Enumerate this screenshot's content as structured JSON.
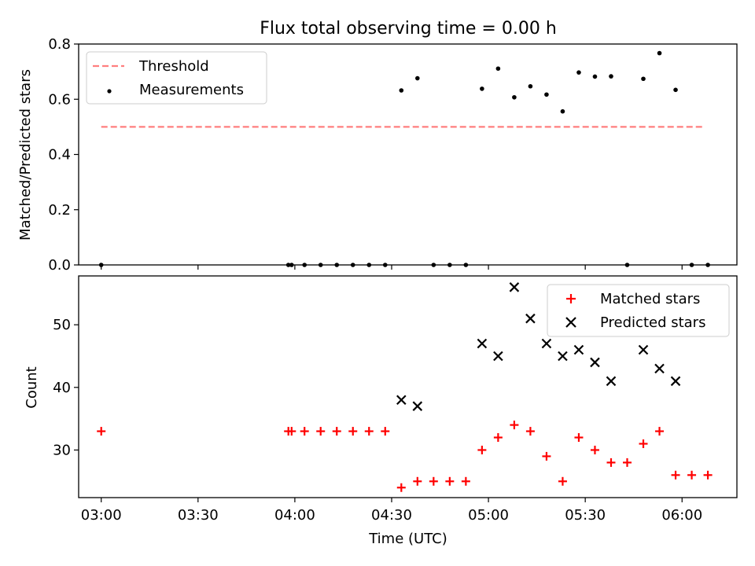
{
  "chart_data": [
    {
      "type": "scatter",
      "title": "Flux total observing time = 0.00 h",
      "xlabel": "",
      "ylabel": "Matched/Predicted stars",
      "ylim": [
        0,
        0.8
      ],
      "xlim": [
        "02:53",
        "06:17"
      ],
      "x_ticks": [
        "03:00",
        "03:30",
        "04:00",
        "04:30",
        "05:00",
        "05:30",
        "06:00"
      ],
      "y_ticks": [
        "0.0",
        "0.2",
        "0.4",
        "0.6",
        "0.8"
      ],
      "show_x_tick_labels": false,
      "legend": {
        "placement": "upper left",
        "entries": [
          "Threshold",
          "Measurements"
        ]
      },
      "threshold": {
        "name": "Threshold",
        "value": 0.5,
        "x_start": "03:00",
        "x_end": "06:07",
        "color": "#ff7f7f",
        "style": "dashed"
      },
      "series": [
        {
          "name": "Measurements",
          "color": "#000000",
          "marker": "dot",
          "points": [
            [
              "03:00",
              0.0
            ],
            [
              "03:58",
              0.0
            ],
            [
              "03:59",
              0.0
            ],
            [
              "04:03",
              0.0
            ],
            [
              "04:08",
              0.0
            ],
            [
              "04:13",
              0.0
            ],
            [
              "04:18",
              0.0
            ],
            [
              "04:23",
              0.0
            ],
            [
              "04:28",
              0.0
            ],
            [
              "04:33",
              0.632
            ],
            [
              "04:38",
              0.676
            ],
            [
              "04:43",
              0.0
            ],
            [
              "04:48",
              0.0
            ],
            [
              "04:53",
              0.0
            ],
            [
              "04:58",
              0.638
            ],
            [
              "05:03",
              0.711
            ],
            [
              "05:08",
              0.607
            ],
            [
              "05:13",
              0.647
            ],
            [
              "05:18",
              0.617
            ],
            [
              "05:23",
              0.556
            ],
            [
              "05:28",
              0.697
            ],
            [
              "05:33",
              0.682
            ],
            [
              "05:38",
              0.683
            ],
            [
              "05:43",
              0.0
            ],
            [
              "05:48",
              0.674
            ],
            [
              "05:53",
              0.767
            ],
            [
              "05:58",
              0.634
            ],
            [
              "06:03",
              0.0
            ],
            [
              "06:08",
              0.0
            ]
          ]
        }
      ]
    },
    {
      "type": "scatter",
      "title": "",
      "xlabel": "Time (UTC)",
      "ylabel": "Count",
      "ylim": [
        22.4,
        57.8
      ],
      "xlim": [
        "02:53",
        "06:17"
      ],
      "x_ticks": [
        "03:00",
        "03:30",
        "04:00",
        "04:30",
        "05:00",
        "05:30",
        "06:00"
      ],
      "y_ticks": [
        "30",
        "40",
        "50"
      ],
      "show_x_tick_labels": true,
      "legend": {
        "placement": "upper right",
        "entries": [
          "Matched stars",
          "Predicted stars"
        ]
      },
      "series": [
        {
          "name": "Matched stars",
          "color": "#ff0000",
          "marker": "plus",
          "points": [
            [
              "03:00",
              33
            ],
            [
              "03:58",
              33
            ],
            [
              "03:59",
              33
            ],
            [
              "04:03",
              33
            ],
            [
              "04:08",
              33
            ],
            [
              "04:13",
              33
            ],
            [
              "04:18",
              33
            ],
            [
              "04:23",
              33
            ],
            [
              "04:28",
              33
            ],
            [
              "04:33",
              24
            ],
            [
              "04:38",
              25
            ],
            [
              "04:43",
              25
            ],
            [
              "04:48",
              25
            ],
            [
              "04:53",
              25
            ],
            [
              "04:58",
              30
            ],
            [
              "05:03",
              32
            ],
            [
              "05:08",
              34
            ],
            [
              "05:13",
              33
            ],
            [
              "05:18",
              29
            ],
            [
              "05:23",
              25
            ],
            [
              "05:28",
              32
            ],
            [
              "05:33",
              30
            ],
            [
              "05:38",
              28
            ],
            [
              "05:43",
              28
            ],
            [
              "05:48",
              31
            ],
            [
              "05:53",
              33
            ],
            [
              "05:58",
              26
            ],
            [
              "06:03",
              26
            ],
            [
              "06:08",
              26
            ]
          ]
        },
        {
          "name": "Predicted stars",
          "color": "#000000",
          "marker": "x",
          "points": [
            [
              "04:33",
              38
            ],
            [
              "04:38",
              37
            ],
            [
              "04:58",
              47
            ],
            [
              "05:03",
              45
            ],
            [
              "05:08",
              56
            ],
            [
              "05:13",
              51
            ],
            [
              "05:18",
              47
            ],
            [
              "05:23",
              45
            ],
            [
              "05:28",
              46
            ],
            [
              "05:33",
              44
            ],
            [
              "05:38",
              41
            ],
            [
              "05:48",
              46
            ],
            [
              "05:53",
              43
            ],
            [
              "05:58",
              41
            ]
          ]
        }
      ]
    }
  ]
}
